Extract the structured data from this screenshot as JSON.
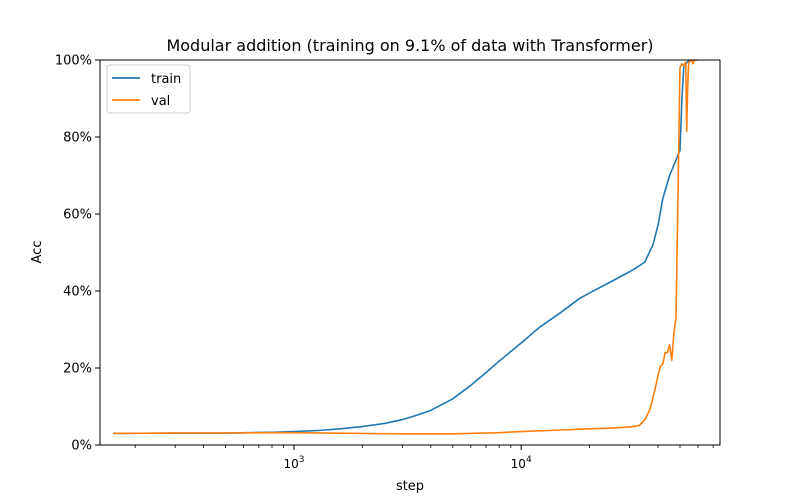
{
  "chart_data": {
    "type": "line",
    "title": "Modular addition (training on 9.1% of data with Transformer)",
    "xlabel": "step",
    "ylabel": "Acc",
    "xscale": "log",
    "xlim": [
      140,
      75000
    ],
    "ylim": [
      0,
      100
    ],
    "x_ticks": [
      {
        "value": 1000,
        "base": "10",
        "exp": "3"
      },
      {
        "value": 10000,
        "base": "10",
        "exp": "4"
      }
    ],
    "y_ticks": [
      {
        "value": 0,
        "label": "0%"
      },
      {
        "value": 20,
        "label": "20%"
      },
      {
        "value": 40,
        "label": "40%"
      },
      {
        "value": 60,
        "label": "60%"
      },
      {
        "value": 80,
        "label": "80%"
      },
      {
        "value": 100,
        "label": "100%"
      }
    ],
    "grid": false,
    "legend_position": "upper left",
    "series": [
      {
        "name": "train",
        "color": "#1f77b4",
        "x": [
          160,
          300,
          500,
          800,
          1000,
          1300,
          1600,
          2000,
          2500,
          3000,
          3500,
          4000,
          5000,
          6000,
          7000,
          8000,
          10000,
          12000,
          15000,
          18000,
          20000,
          25000,
          30000,
          33000,
          35000,
          38000,
          40000,
          42000,
          45000,
          48000,
          50000,
          51000,
          52000,
          54000,
          55000,
          56000,
          58000,
          60000
        ],
        "y": [
          3.0,
          3.1,
          3.1,
          3.3,
          3.5,
          3.8,
          4.2,
          4.8,
          5.6,
          6.6,
          7.8,
          9.0,
          12.0,
          15.5,
          18.8,
          21.8,
          26.5,
          30.5,
          34.5,
          38.0,
          39.5,
          42.5,
          45.0,
          46.5,
          47.5,
          52.0,
          57.0,
          64.0,
          70.0,
          74.0,
          76.5,
          90.0,
          98.5,
          99.5,
          100.0,
          100.0,
          100.0,
          100.0
        ]
      },
      {
        "name": "val",
        "color": "#ff7f0e",
        "x": [
          160,
          300,
          500,
          800,
          1000,
          2000,
          3000,
          5000,
          8000,
          10000,
          15000,
          20000,
          25000,
          30000,
          33000,
          35000,
          37000,
          39000,
          40000,
          41000,
          42000,
          43000,
          44000,
          45000,
          46000,
          47000,
          48000,
          49000,
          50000,
          51000,
          52000,
          53000,
          53500,
          54000,
          54500,
          55000,
          56000,
          57000,
          58000,
          60000
        ],
        "y": [
          3.0,
          3.1,
          3.1,
          3.2,
          3.2,
          3.0,
          2.9,
          2.9,
          3.2,
          3.5,
          3.9,
          4.2,
          4.4,
          4.7,
          5.0,
          6.5,
          9.5,
          15.0,
          18.0,
          20.5,
          21.0,
          24.0,
          24.0,
          26.0,
          22.0,
          29.0,
          33.0,
          65.0,
          98.0,
          99.0,
          98.5,
          99.5,
          81.5,
          92.0,
          98.5,
          99.5,
          100.0,
          99.0,
          100.0,
          100.0
        ]
      }
    ]
  }
}
